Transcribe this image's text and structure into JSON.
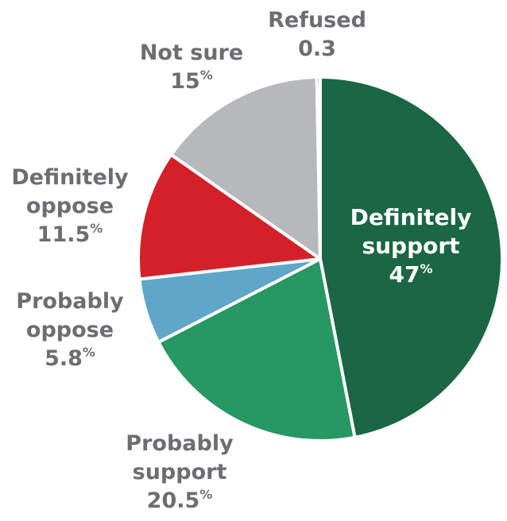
{
  "chart_data": {
    "type": "pie",
    "title": "",
    "unit": "%",
    "slices": [
      {
        "label_lines": [
          "Definitely",
          "support"
        ],
        "value": 47,
        "value_text": "47",
        "color": "#1b6644"
      },
      {
        "label_lines": [
          "Probably",
          "support"
        ],
        "value": 20.5,
        "value_text": "20.5",
        "color": "#279764"
      },
      {
        "label_lines": [
          "Probably",
          "oppose"
        ],
        "value": 5.8,
        "value_text": "5.8",
        "color": "#5fa6c9"
      },
      {
        "label_lines": [
          "Definitely",
          "oppose"
        ],
        "value": 11.5,
        "value_text": "11.5",
        "color": "#d42028"
      },
      {
        "label_lines": [
          "Not sure"
        ],
        "value": 15,
        "value_text": "15",
        "color": "#b7b8bb"
      },
      {
        "label_lines": [
          "Refused"
        ],
        "value": 0.3,
        "value_text": "0.3",
        "color": "#1a1a1a"
      }
    ]
  }
}
